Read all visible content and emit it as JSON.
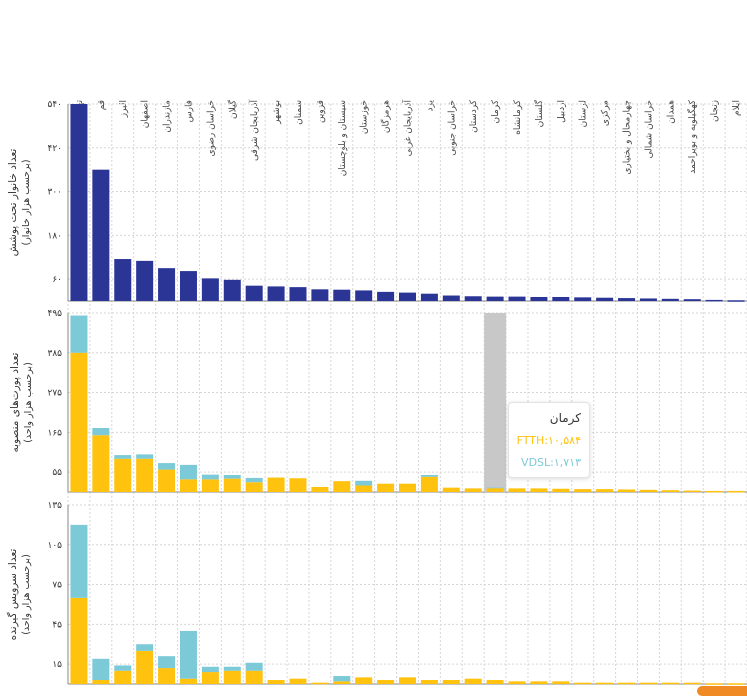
{
  "colors": {
    "navy": "#2a3596",
    "ftth": "#ffc20e",
    "vdsl": "#7ccad8",
    "highlight": "#c8c8c8",
    "grid": "#d6d6d6"
  },
  "chart_data": [
    {
      "type": "bar",
      "ylabel": "تعداد خانوار تحت پوشش",
      "ylabel_sub": "(برحسب هزار خانوار)",
      "yticks": [
        "۵۴۰",
        "۴۲۰",
        "۳۰۰",
        "۱۸۰",
        "۶۰"
      ],
      "ytick_values": [
        540,
        420,
        300,
        180,
        60
      ],
      "ylim": [
        0,
        540
      ],
      "categories": [
        "تهران",
        "قم",
        "البرز",
        "اصفهان",
        "مازندران",
        "فارس",
        "خراسان رضوی",
        "گیلان",
        "آذربایجان شرقی",
        "بوشهر",
        "سمنان",
        "قزوین",
        "سیستان و بلوچستان",
        "خوزستان",
        "هرمزگان",
        "آذربایجان غربی",
        "یزد",
        "خراسان جنوبی",
        "کردستان",
        "کرمان",
        "کرمانشاه",
        "گلستان",
        "اردبیل",
        "لرستان",
        "مرکزی",
        "چهارمحال و بختیاری",
        "خراسان شمالی",
        "همدان",
        "کهگیلویه و بویراحمد",
        "زنجان",
        "ایلام"
      ],
      "values": [
        540,
        360,
        115,
        110,
        90,
        82,
        62,
        58,
        42,
        40,
        38,
        32,
        31,
        29,
        25,
        23,
        20,
        15,
        13,
        12,
        12,
        11,
        11,
        10,
        9,
        8,
        7,
        6,
        5,
        3,
        2
      ]
    },
    {
      "type": "stacked-bar",
      "ylabel": "تعداد پورت‌های منصوبه",
      "ylabel_sub": "(برحسب هزار واحد)",
      "yticks": [
        "۴۹۵",
        "۳۸۵",
        "۲۷۵",
        "۱۶۵",
        "۵۵"
      ],
      "ytick_values": [
        495,
        385,
        275,
        165,
        55
      ],
      "ylim": [
        0,
        495
      ],
      "series": [
        {
          "name": "FTTH",
          "values": [
            385,
            157,
            92,
            92,
            62,
            35,
            35,
            37,
            27,
            40,
            38,
            14,
            30,
            18,
            23,
            23,
            42,
            12,
            10,
            10.584,
            10,
            10,
            9,
            8,
            8,
            7,
            6,
            5,
            4,
            3,
            3
          ]
        },
        {
          "name": "VDSL",
          "values": [
            103,
            20,
            10,
            12,
            18,
            40,
            13,
            10,
            12,
            0,
            0,
            0,
            0,
            13,
            0,
            0,
            5,
            0,
            0,
            1.713,
            0,
            0,
            0,
            0,
            0,
            0,
            0,
            0,
            0,
            0,
            0
          ]
        }
      ],
      "highlight_category": "کرمان"
    },
    {
      "type": "stacked-bar",
      "ylabel": "تعداد سرویس گیرنده",
      "ylabel_sub": "(برحسب هزار واحد)",
      "yticks": [
        "۱۳۵",
        "۱۰۵",
        "۷۵",
        "۴۵",
        "۱۵"
      ],
      "ytick_values": [
        135,
        105,
        75,
        45,
        15
      ],
      "ylim": [
        0,
        135
      ],
      "series": [
        {
          "name": "FTTH",
          "values": [
            65,
            3,
            10,
            25,
            12,
            4,
            9,
            10,
            10,
            3,
            4,
            1,
            2,
            5,
            3,
            5,
            3,
            3,
            4,
            3,
            2,
            2,
            2,
            1,
            1,
            1,
            1,
            1,
            1,
            0.5,
            0.5
          ]
        },
        {
          "name": "VDSL",
          "values": [
            55,
            16,
            4,
            5,
            9,
            36,
            4,
            3,
            6,
            0,
            0,
            0,
            4,
            0,
            0,
            0,
            0,
            0,
            0,
            0,
            0,
            0,
            0,
            0,
            0,
            0,
            0,
            0,
            0,
            0,
            0
          ]
        }
      ]
    }
  ],
  "tooltip": {
    "title": "کرمان",
    "line1": "FTTH:۱۰,۵۸۴",
    "line2": "VDSL:۱,۷۱۳"
  }
}
